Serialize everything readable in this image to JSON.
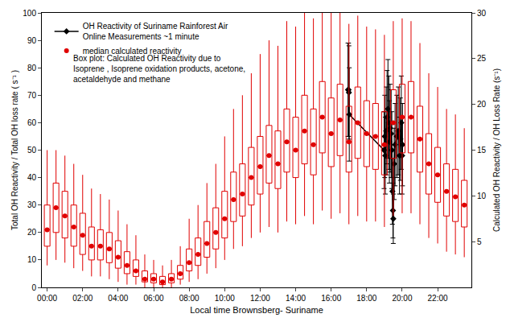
{
  "chart_data": {
    "type": "box",
    "x_label": "Local time Brownsberg- Suriname",
    "y_label": "Total OH Reactivity / Total OH loss rate ( s⁻¹ )",
    "y2_label": "Calculated OH Reactivity / OH Loss Rate (s⁻¹)",
    "xlim": [
      -0.3,
      23.9
    ],
    "xticks": [
      {
        "value": 0,
        "label": "00:00"
      },
      {
        "value": 2,
        "label": "02:00"
      },
      {
        "value": 4,
        "label": "04:00"
      },
      {
        "value": 6,
        "label": "06:00"
      },
      {
        "value": 8,
        "label": "08:00"
      },
      {
        "value": 10,
        "label": "10:00"
      },
      {
        "value": 12,
        "label": "12:00"
      },
      {
        "value": 14,
        "label": "14:00"
      },
      {
        "value": 16,
        "label": "16:00"
      },
      {
        "value": 18,
        "label": "18:00"
      },
      {
        "value": 20,
        "label": "20:00"
      },
      {
        "value": 22,
        "label": "22:00"
      }
    ],
    "ylim": [
      0,
      100
    ],
    "yticks": [
      0,
      10,
      20,
      30,
      40,
      50,
      60,
      70,
      80,
      90,
      100
    ],
    "y2lim": [
      0,
      30
    ],
    "y2ticks": [
      5,
      10,
      15,
      20,
      25,
      30
    ],
    "grid": false,
    "legend": "top left",
    "annotations": [
      {
        "text": [
          "Box plot: Calculated OH Reactivity due to",
          "Isoprene , Isoprene oxidation products, acetone,",
          "acetaldehyde and methane"
        ]
      }
    ],
    "series": [
      {
        "type": "box",
        "color": "#e00000",
        "axis": "y2",
        "x": [
          0,
          0.5,
          1,
          1.5,
          2,
          2.5,
          3,
          3.5,
          4,
          4.5,
          5,
          5.5,
          6,
          6.5,
          7,
          7.5,
          8,
          8.5,
          9,
          9.5,
          10,
          10.5,
          11,
          11.5,
          12,
          12.5,
          13,
          13.5,
          14,
          14.5,
          15,
          15.5,
          16,
          16.5,
          17,
          17.5,
          18,
          18.5,
          19,
          19.5,
          20,
          20.5,
          21,
          21.5,
          22,
          22.5,
          23,
          23.5
        ],
        "lowerfence": [
          2.4,
          3.0,
          2.7,
          2.1,
          1.8,
          1.2,
          1.2,
          0.9,
          0.6,
          0.3,
          0.3,
          0.0,
          0.0,
          0.0,
          0.0,
          0.3,
          0.6,
          0.9,
          1.5,
          2.1,
          3.0,
          4.2,
          4.5,
          5.4,
          6.0,
          6.6,
          6.0,
          7.2,
          6.9,
          7.8,
          6.9,
          8.4,
          7.5,
          8.1,
          6.9,
          7.8,
          7.2,
          7.2,
          6.6,
          7.8,
          8.1,
          8.1,
          6.9,
          5.4,
          4.8,
          3.9,
          3.6,
          3.3
        ],
        "q1": [
          4.5,
          6.0,
          5.4,
          4.5,
          3.6,
          3.0,
          3.0,
          2.7,
          2.1,
          1.5,
          1.2,
          0.6,
          0.5,
          0.3,
          0.5,
          0.9,
          1.8,
          2.4,
          3.3,
          4.2,
          5.4,
          7.2,
          7.8,
          9.0,
          10.2,
          11.4,
          10.8,
          12.6,
          12.0,
          13.5,
          12.3,
          14.7,
          13.2,
          14.4,
          12.6,
          14.1,
          13.2,
          12.9,
          12.3,
          14.1,
          14.7,
          14.7,
          12.6,
          10.2,
          9.3,
          7.8,
          7.2,
          6.6
        ],
        "median": [
          6.3,
          8.7,
          7.8,
          6.6,
          5.7,
          4.5,
          4.5,
          4.2,
          3.3,
          2.4,
          1.8,
          0.9,
          0.9,
          0.6,
          0.9,
          1.5,
          2.7,
          3.6,
          4.8,
          6.0,
          7.5,
          9.6,
          10.2,
          12.0,
          13.2,
          14.4,
          13.5,
          15.9,
          15.0,
          17.1,
          15.6,
          18.6,
          16.8,
          18.3,
          15.9,
          18.0,
          16.8,
          16.5,
          15.6,
          18.0,
          18.6,
          18.6,
          16.2,
          13.5,
          12.3,
          10.5,
          9.9,
          9.0
        ],
        "q3": [
          9.0,
          11.4,
          10.5,
          9.0,
          8.1,
          6.6,
          6.3,
          6.0,
          5.1,
          3.9,
          3.0,
          1.8,
          1.5,
          1.2,
          1.5,
          2.4,
          4.2,
          5.4,
          7.2,
          8.7,
          10.5,
          12.6,
          13.5,
          15.3,
          16.5,
          17.7,
          17.1,
          19.5,
          18.6,
          21.0,
          19.5,
          22.5,
          20.7,
          22.2,
          19.8,
          21.9,
          20.4,
          20.1,
          19.2,
          21.6,
          22.2,
          22.5,
          19.8,
          16.8,
          15.3,
          13.5,
          12.9,
          11.7
        ],
        "upperfence": [
          15.0,
          15.0,
          14.4,
          13.5,
          12.3,
          10.8,
          10.2,
          9.6,
          8.4,
          6.9,
          5.7,
          3.6,
          3.0,
          2.4,
          3.0,
          4.5,
          7.5,
          9.0,
          11.4,
          13.5,
          16.5,
          19.5,
          21.0,
          23.4,
          25.5,
          27.0,
          26.4,
          29.1,
          28.5,
          30.0,
          29.4,
          30.0,
          30.0,
          30.0,
          28.8,
          29.7,
          28.5,
          28.2,
          27.6,
          29.1,
          29.4,
          29.1,
          26.7,
          23.4,
          21.9,
          19.5,
          18.9,
          17.4
        ]
      },
      {
        "name": "median calculated reactivity",
        "type": "scatter",
        "color": "#e00000",
        "marker": "circle",
        "axis": "y2",
        "x": [
          0,
          0.5,
          1,
          1.5,
          2,
          2.5,
          3,
          3.5,
          4,
          4.5,
          5,
          5.5,
          6,
          6.5,
          7,
          7.5,
          8,
          8.5,
          9,
          9.5,
          10,
          10.5,
          11,
          11.5,
          12,
          12.5,
          13,
          13.5,
          14,
          14.5,
          15,
          15.5,
          16,
          16.5,
          17,
          17.5,
          18,
          18.5,
          19,
          19.5,
          20,
          20.5,
          21,
          21.5,
          22,
          22.5,
          23,
          23.5
        ],
        "values": [
          6.3,
          8.7,
          7.8,
          6.6,
          5.7,
          4.5,
          4.5,
          4.2,
          3.3,
          2.4,
          1.8,
          0.9,
          0.9,
          0.6,
          0.9,
          1.5,
          2.7,
          3.6,
          4.8,
          6.0,
          7.5,
          9.6,
          10.2,
          12.0,
          13.2,
          14.4,
          13.5,
          15.9,
          15.0,
          17.1,
          15.6,
          18.6,
          16.8,
          18.3,
          15.9,
          18.0,
          16.8,
          16.5,
          15.6,
          18.0,
          18.6,
          18.6,
          16.2,
          13.5,
          12.3,
          10.5,
          9.9,
          9.0
        ]
      },
      {
        "name": [
          "OH Reactivity of Suriname Rainforest Air",
          "Online Measurements ~1 minute"
        ],
        "type": "scatter",
        "color": "#000000",
        "marker": "diamond",
        "line_style": "solid",
        "x": [
          16.95,
          16.98,
          17.0,
          17.02,
          18.98,
          19.02,
          19.05,
          19.1,
          19.15,
          19.2,
          19.25,
          19.28,
          19.32,
          19.38,
          19.42,
          19.45,
          19.48,
          19.5,
          19.55,
          19.6,
          19.7,
          19.78,
          19.85,
          19.9,
          19.95,
          20.0,
          20.02
        ],
        "values": [
          72,
          72,
          71,
          63,
          50,
          55,
          48,
          57,
          62,
          65,
          60,
          53,
          58,
          56,
          50,
          35,
          28,
          25,
          45,
          52,
          55,
          57,
          48,
          54,
          60,
          48,
          52
        ],
        "error": [
          17,
          17,
          17,
          17,
          14,
          15,
          14,
          16,
          17,
          18,
          17,
          15,
          16,
          16,
          14,
          12,
          10,
          9,
          13,
          15,
          15,
          16,
          14,
          15,
          17,
          14,
          15
        ]
      }
    ]
  }
}
